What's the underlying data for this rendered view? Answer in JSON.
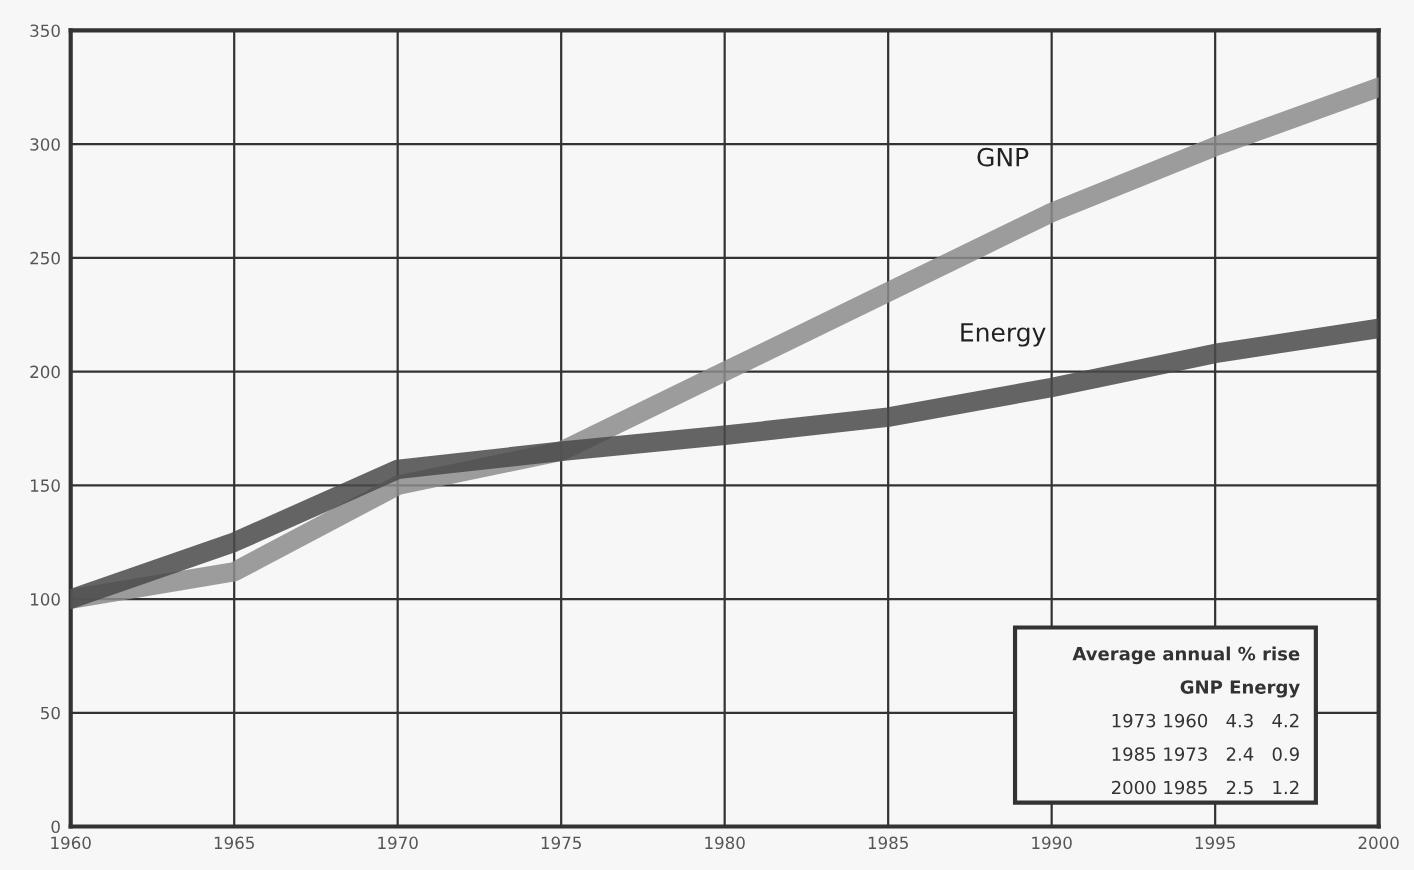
{
  "chart_data": {
    "type": "line",
    "x": [
      1960,
      1965,
      1970,
      1975,
      1980,
      1985,
      1990,
      1995,
      2000
    ],
    "series": [
      {
        "name": "GNP",
        "color": "#8c8c8c",
        "values": [
          100,
          112,
          150,
          165,
          200,
          235,
          270,
          299,
          325
        ]
      },
      {
        "name": "Energy",
        "color": "#4a4a4a",
        "values": [
          100,
          125,
          157,
          165,
          172,
          180,
          193,
          208,
          219
        ]
      }
    ],
    "xlim": [
      1960,
      2000
    ],
    "xticks": [
      1960,
      1965,
      1970,
      1975,
      1980,
      1985,
      1990,
      1995,
      2000
    ],
    "ylim": [
      0,
      350
    ],
    "yticks": [
      0,
      50,
      100,
      150,
      200,
      250,
      300,
      350
    ],
    "grid": true,
    "legend": false,
    "marker": "none",
    "line_style": "solid",
    "annotations": [
      "Average annual % rise",
      "GNP Energy",
      "1973 1960   4.3   4.2",
      "1985 1973   2.4   0.9",
      "2000 1985   2.5   1.2"
    ]
  }
}
